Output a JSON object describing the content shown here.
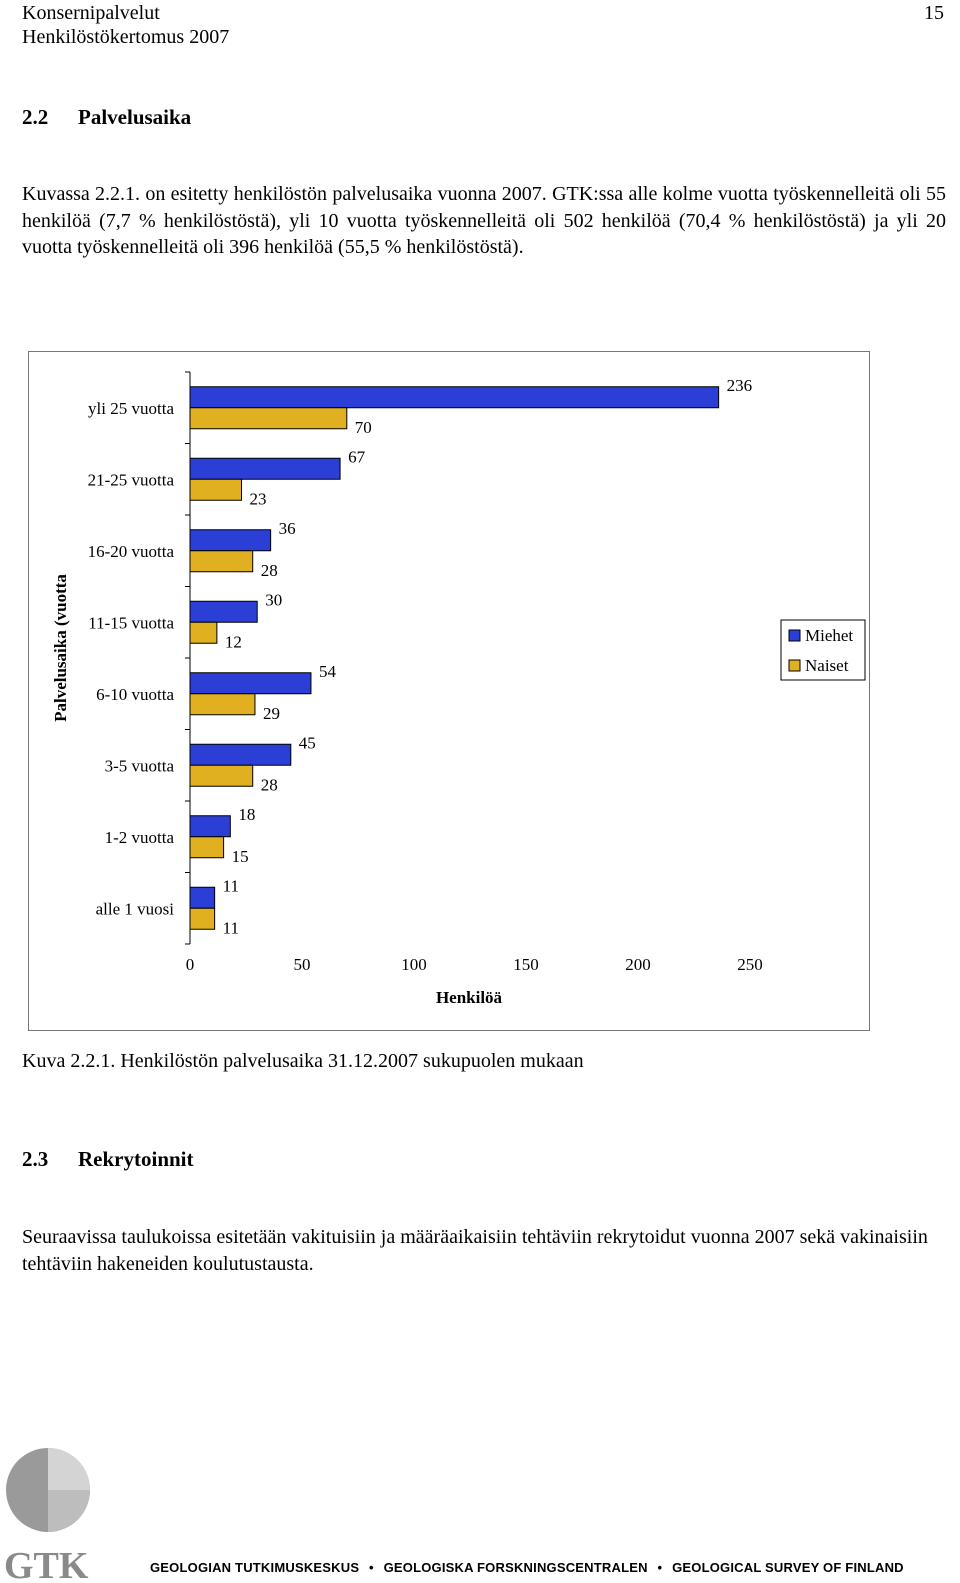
{
  "header": {
    "line1": "Konsernipalvelut",
    "line2": "Henkilöstökertomus 2007",
    "page_number": "15"
  },
  "section_2_2": {
    "number": "2.2",
    "title": "Palvelusaika",
    "paragraph": "Kuvassa 2.2.1. on esitetty henkilöstön palvelusaika vuonna 2007. GTK:ssa alle kolme vuotta työskennelleitä oli 55 henkilöä (7,7 % henkilöstöstä), yli 10 vuotta työskennelleitä oli 502 henkilöä (70,4 % henkilöstöstä) ja yli 20 vuotta työskennelleitä oli 396 henkilöä (55,5 % henkilöstöstä)."
  },
  "chart_data": {
    "type": "bar",
    "orientation": "horizontal",
    "categories": [
      "yli 25 vuotta",
      "21-25 vuotta",
      "16-20 vuotta",
      "11-15 vuotta",
      "6-10 vuotta",
      "3-5 vuotta",
      "1-2 vuotta",
      "alle 1 vuosi"
    ],
    "series": [
      {
        "name": "Miehet",
        "values": [
          236,
          67,
          36,
          30,
          54,
          45,
          18,
          11
        ],
        "color": "#2b3fd6"
      },
      {
        "name": "Naiset",
        "values": [
          70,
          23,
          28,
          12,
          29,
          28,
          15,
          11
        ],
        "color": "#e0b020"
      }
    ],
    "xlabel": "Henkilöä",
    "ylabel": "Palvelusaika (vuotta",
    "xlim": [
      0,
      250
    ],
    "xticks": [
      "0",
      "50",
      "100",
      "150",
      "200",
      "250"
    ],
    "grid": false,
    "legend": "right"
  },
  "caption": "Kuva 2.2.1. Henkilöstön palvelusaika 31.12.2007 sukupuolen mukaan",
  "section_2_3": {
    "number": "2.3",
    "title": "Rekrytoinnit",
    "paragraph": "Seuraavissa taulukoissa esitetään vakituisiin ja määräaikaisiin tehtäviin rekrytoidut vuonna 2007 sekä vakinaisiin tehtäviin hakeneiden koulutustausta."
  },
  "footer": {
    "logo_text": "GTK",
    "org_names": [
      "GEOLOGIAN TUTKIMUSKESKUS",
      "GEOLOGISKA FORSKNINGSCENTRALEN",
      "GEOLOGICAL SURVEY OF FINLAND"
    ],
    "separator": "•",
    "colors": {
      "logo_grey": "#8a8a8a",
      "text": "#000000"
    }
  }
}
